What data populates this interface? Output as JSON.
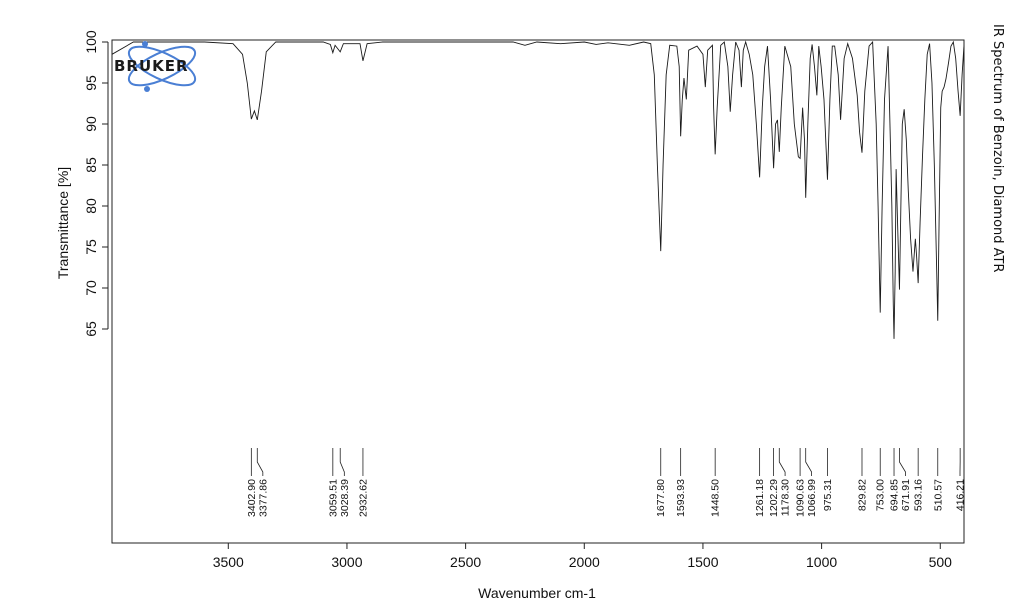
{
  "chart_data": {
    "type": "line",
    "title": "IR Spectrum of Benzoin, Diamond ATR",
    "xlabel": "Wavenumber cm-1",
    "ylabel": "Transmittance [%]",
    "xlim": [
      3990,
      400
    ],
    "ylim": [
      50,
      100
    ],
    "x_reversed": true,
    "x_ticks": [
      3500,
      3000,
      2500,
      2000,
      1500,
      1000,
      500
    ],
    "y_ticks": [
      65,
      70,
      75,
      80,
      85,
      90,
      95,
      100
    ],
    "grid": false,
    "series": [
      {
        "points": [
          [
            3990,
            98.5
          ],
          [
            3900,
            100
          ],
          [
            3600,
            100
          ],
          [
            3480,
            99.8
          ],
          [
            3440,
            98.5
          ],
          [
            3420,
            95
          ],
          [
            3402.9,
            90.6
          ],
          [
            3390,
            91.6
          ],
          [
            3377.86,
            90.5
          ],
          [
            3360,
            94
          ],
          [
            3340,
            98.8
          ],
          [
            3300,
            100
          ],
          [
            3100,
            100
          ],
          [
            3070,
            99.7
          ],
          [
            3059.51,
            98.7
          ],
          [
            3050,
            99.6
          ],
          [
            3028.39,
            98.8
          ],
          [
            3015,
            99.8
          ],
          [
            2945,
            99.8
          ],
          [
            2932.62,
            97.7
          ],
          [
            2915,
            99.8
          ],
          [
            2850,
            100
          ],
          [
            2300,
            100
          ],
          [
            2250,
            99.6
          ],
          [
            2200,
            100
          ],
          [
            2100,
            99.8
          ],
          [
            2000,
            100
          ],
          [
            1950,
            99.7
          ],
          [
            1900,
            99.9
          ],
          [
            1810,
            99.6
          ],
          [
            1750,
            100
          ],
          [
            1720,
            99.8
          ],
          [
            1705,
            96
          ],
          [
            1692,
            85
          ],
          [
            1677.8,
            74.5
          ],
          [
            1668,
            85
          ],
          [
            1655,
            96
          ],
          [
            1640,
            99.6
          ],
          [
            1610,
            99.5
          ],
          [
            1600,
            97
          ],
          [
            1593.93,
            88.5
          ],
          [
            1587,
            93
          ],
          [
            1580,
            95.6
          ],
          [
            1570,
            93
          ],
          [
            1560,
            99
          ],
          [
            1525,
            99.5
          ],
          [
            1500,
            98.5
          ],
          [
            1490,
            94.5
          ],
          [
            1480,
            99
          ],
          [
            1460,
            99.6
          ],
          [
            1455,
            92
          ],
          [
            1448.5,
            86.3
          ],
          [
            1440,
            92
          ],
          [
            1425,
            99.6
          ],
          [
            1410,
            100
          ],
          [
            1395,
            97
          ],
          [
            1385,
            91.5
          ],
          [
            1375,
            96
          ],
          [
            1362,
            100
          ],
          [
            1348,
            99
          ],
          [
            1338,
            94.5
          ],
          [
            1330,
            99
          ],
          [
            1320,
            100
          ],
          [
            1305,
            98.5
          ],
          [
            1290,
            96
          ],
          [
            1275,
            90
          ],
          [
            1261.18,
            83.5
          ],
          [
            1250,
            92
          ],
          [
            1240,
            97
          ],
          [
            1228,
            99.5
          ],
          [
            1215,
            93
          ],
          [
            1202.29,
            84.6
          ],
          [
            1194,
            90
          ],
          [
            1186,
            90.5
          ],
          [
            1178.3,
            86.6
          ],
          [
            1170,
            92
          ],
          [
            1155,
            99.5
          ],
          [
            1130,
            97
          ],
          [
            1115,
            90
          ],
          [
            1098,
            86
          ],
          [
            1090.63,
            85.8
          ],
          [
            1080,
            92
          ],
          [
            1072,
            88
          ],
          [
            1066.99,
            81
          ],
          [
            1058,
            90
          ],
          [
            1048,
            98
          ],
          [
            1040,
            99.7
          ],
          [
            1030,
            97
          ],
          [
            1020,
            93.5
          ],
          [
            1012,
            99.5
          ],
          [
            1002,
            97
          ],
          [
            990,
            93
          ],
          [
            975.31,
            83.2
          ],
          [
            965,
            93
          ],
          [
            955,
            99.5
          ],
          [
            945,
            99.5
          ],
          [
            930,
            96
          ],
          [
            920,
            90.5
          ],
          [
            905,
            98
          ],
          [
            890,
            99.8
          ],
          [
            870,
            98
          ],
          [
            850,
            93.5
          ],
          [
            840,
            89
          ],
          [
            829.82,
            86.5
          ],
          [
            818,
            94
          ],
          [
            800,
            99.5
          ],
          [
            785,
            100
          ],
          [
            770,
            90
          ],
          [
            762,
            80
          ],
          [
            753,
            67
          ],
          [
            745,
            80
          ],
          [
            735,
            93
          ],
          [
            720,
            99.5
          ],
          [
            712,
            90
          ],
          [
            704,
            80
          ],
          [
            698,
            68
          ],
          [
            694.85,
            63.8
          ],
          [
            690,
            72
          ],
          [
            686,
            84.5
          ],
          [
            680,
            78
          ],
          [
            671.91,
            69.8
          ],
          [
            666,
            80
          ],
          [
            660,
            90
          ],
          [
            652,
            91.8
          ],
          [
            643,
            88
          ],
          [
            635,
            82
          ],
          [
            625,
            76
          ],
          [
            615,
            72
          ],
          [
            605,
            76
          ],
          [
            600,
            74
          ],
          [
            593.16,
            70.6
          ],
          [
            585,
            78
          ],
          [
            575,
            86
          ],
          [
            565,
            93
          ],
          [
            555,
            98.5
          ],
          [
            545,
            99.8
          ],
          [
            535,
            95
          ],
          [
            525,
            85
          ],
          [
            515,
            72
          ],
          [
            510.57,
            66
          ],
          [
            505,
            78
          ],
          [
            498,
            92
          ],
          [
            492,
            94
          ],
          [
            484,
            94.5
          ],
          [
            476,
            95.5
          ],
          [
            465,
            97.5
          ],
          [
            455,
            99.5
          ],
          [
            445,
            100
          ],
          [
            435,
            98
          ],
          [
            425,
            94
          ],
          [
            416.21,
            91
          ],
          [
            408,
            96
          ],
          [
            400,
            99.6
          ]
        ]
      }
    ],
    "peak_labels": [
      "3402.90",
      "3377.86",
      "3059.51",
      "3028.39",
      "2932.62",
      "1677.80",
      "1593.93",
      "1448.50",
      "1261.18",
      "1202.29",
      "1178.30",
      "1090.63",
      "1066.99",
      "975.31",
      "829.82",
      "753.00",
      "694.85",
      "671.91",
      "593.16",
      "510.57",
      "416.21"
    ],
    "peak_positions": [
      3402.9,
      3377.86,
      3059.51,
      3028.39,
      2932.62,
      1677.8,
      1593.93,
      1448.5,
      1261.18,
      1202.29,
      1178.3,
      1090.63,
      1066.99,
      975.31,
      829.82,
      753.0,
      694.85,
      671.91,
      593.16,
      510.57,
      416.21
    ],
    "logo_text": "BRUKER",
    "colors": {
      "line": "#1a1a1a",
      "logo_accent": "#4a7fd4"
    }
  }
}
